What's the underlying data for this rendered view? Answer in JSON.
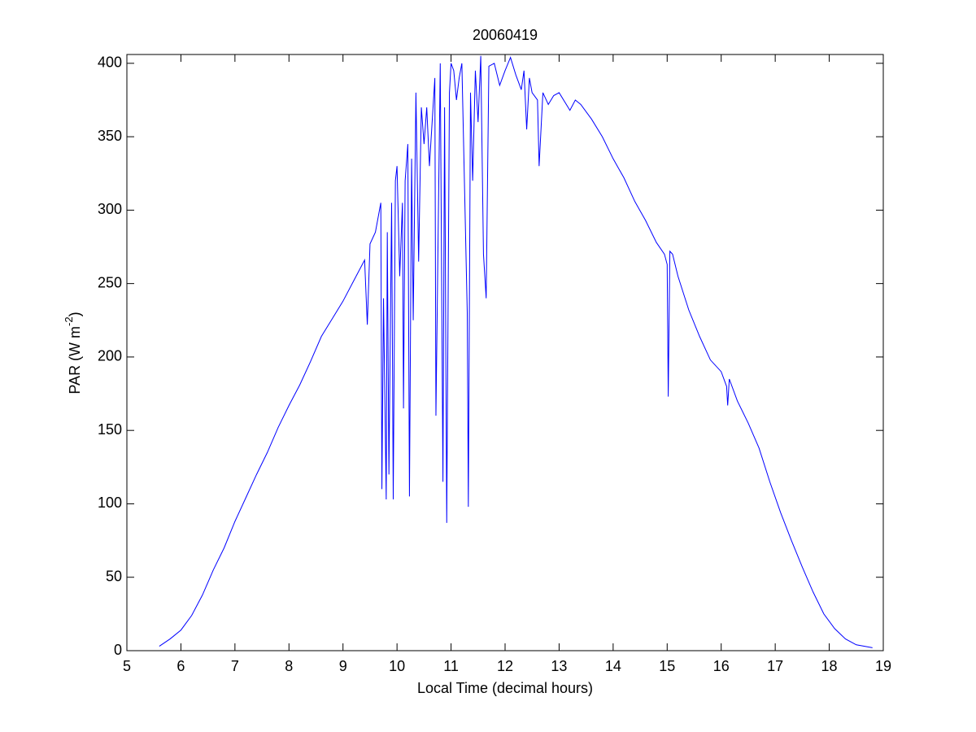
{
  "chart_data": {
    "type": "line",
    "title": "20060419",
    "xlabel": "Local Time (decimal hours)",
    "ylabel": [
      "PAR (W m",
      "-2",
      ")"
    ],
    "x": [
      5.6,
      5.8,
      6.0,
      6.2,
      6.4,
      6.6,
      6.8,
      7.0,
      7.2,
      7.4,
      7.6,
      7.8,
      8.0,
      8.2,
      8.4,
      8.6,
      8.8,
      9.0,
      9.2,
      9.4,
      9.45,
      9.5,
      9.6,
      9.7,
      9.72,
      9.75,
      9.8,
      9.82,
      9.85,
      9.9,
      9.93,
      9.97,
      10.0,
      10.05,
      10.1,
      10.12,
      10.15,
      10.2,
      10.23,
      10.27,
      10.3,
      10.35,
      10.4,
      10.45,
      10.5,
      10.55,
      10.6,
      10.7,
      10.72,
      10.8,
      10.85,
      10.88,
      10.92,
      10.97,
      11.0,
      11.05,
      11.1,
      11.15,
      11.2,
      11.3,
      11.32,
      11.36,
      11.4,
      11.45,
      11.5,
      11.55,
      11.6,
      11.65,
      11.7,
      11.8,
      11.9,
      12.0,
      12.1,
      12.2,
      12.3,
      12.35,
      12.4,
      12.45,
      12.5,
      12.6,
      12.63,
      12.7,
      12.8,
      12.9,
      13.0,
      13.2,
      13.3,
      13.4,
      13.6,
      13.8,
      14.0,
      14.2,
      14.4,
      14.6,
      14.8,
      14.95,
      15.0,
      15.02,
      15.05,
      15.1,
      15.2,
      15.4,
      15.6,
      15.8,
      16.0,
      16.1,
      16.12,
      16.15,
      16.3,
      16.5,
      16.7,
      16.9,
      17.1,
      17.3,
      17.5,
      17.7,
      17.9,
      18.1,
      18.3,
      18.5,
      18.8
    ],
    "series": [
      {
        "name": "PAR",
        "color": "#0000ff",
        "values": [
          3,
          8,
          14,
          24,
          38,
          55,
          70,
          88,
          104,
          120,
          135,
          152,
          167,
          181,
          197,
          214,
          226,
          238,
          252,
          266,
          222,
          277,
          285,
          305,
          110,
          240,
          103,
          285,
          120,
          305,
          103,
          320,
          330,
          255,
          305,
          165,
          320,
          345,
          105,
          335,
          225,
          380,
          265,
          370,
          345,
          370,
          330,
          390,
          160,
          400,
          115,
          370,
          87,
          380,
          400,
          395,
          375,
          390,
          400,
          230,
          98,
          380,
          320,
          395,
          360,
          405,
          270,
          240,
          398,
          400,
          385,
          395,
          404,
          392,
          382,
          395,
          355,
          390,
          380,
          375,
          330,
          380,
          372,
          378,
          380,
          368,
          375,
          372,
          362,
          350,
          335,
          322,
          306,
          293,
          278,
          270,
          263,
          173,
          272,
          270,
          255,
          232,
          214,
          198,
          190,
          180,
          167,
          185,
          170,
          155,
          138,
          115,
          94,
          75,
          57,
          40,
          25,
          15,
          8,
          4,
          2
        ]
      }
    ],
    "xlim": [
      5,
      19
    ],
    "xticks": [
      5,
      6,
      7,
      8,
      9,
      10,
      11,
      12,
      13,
      14,
      15,
      16,
      17,
      18,
      19
    ],
    "ylim": [
      0,
      406
    ],
    "yticks": [
      0,
      50,
      100,
      150,
      200,
      250,
      300,
      350,
      400
    ]
  }
}
